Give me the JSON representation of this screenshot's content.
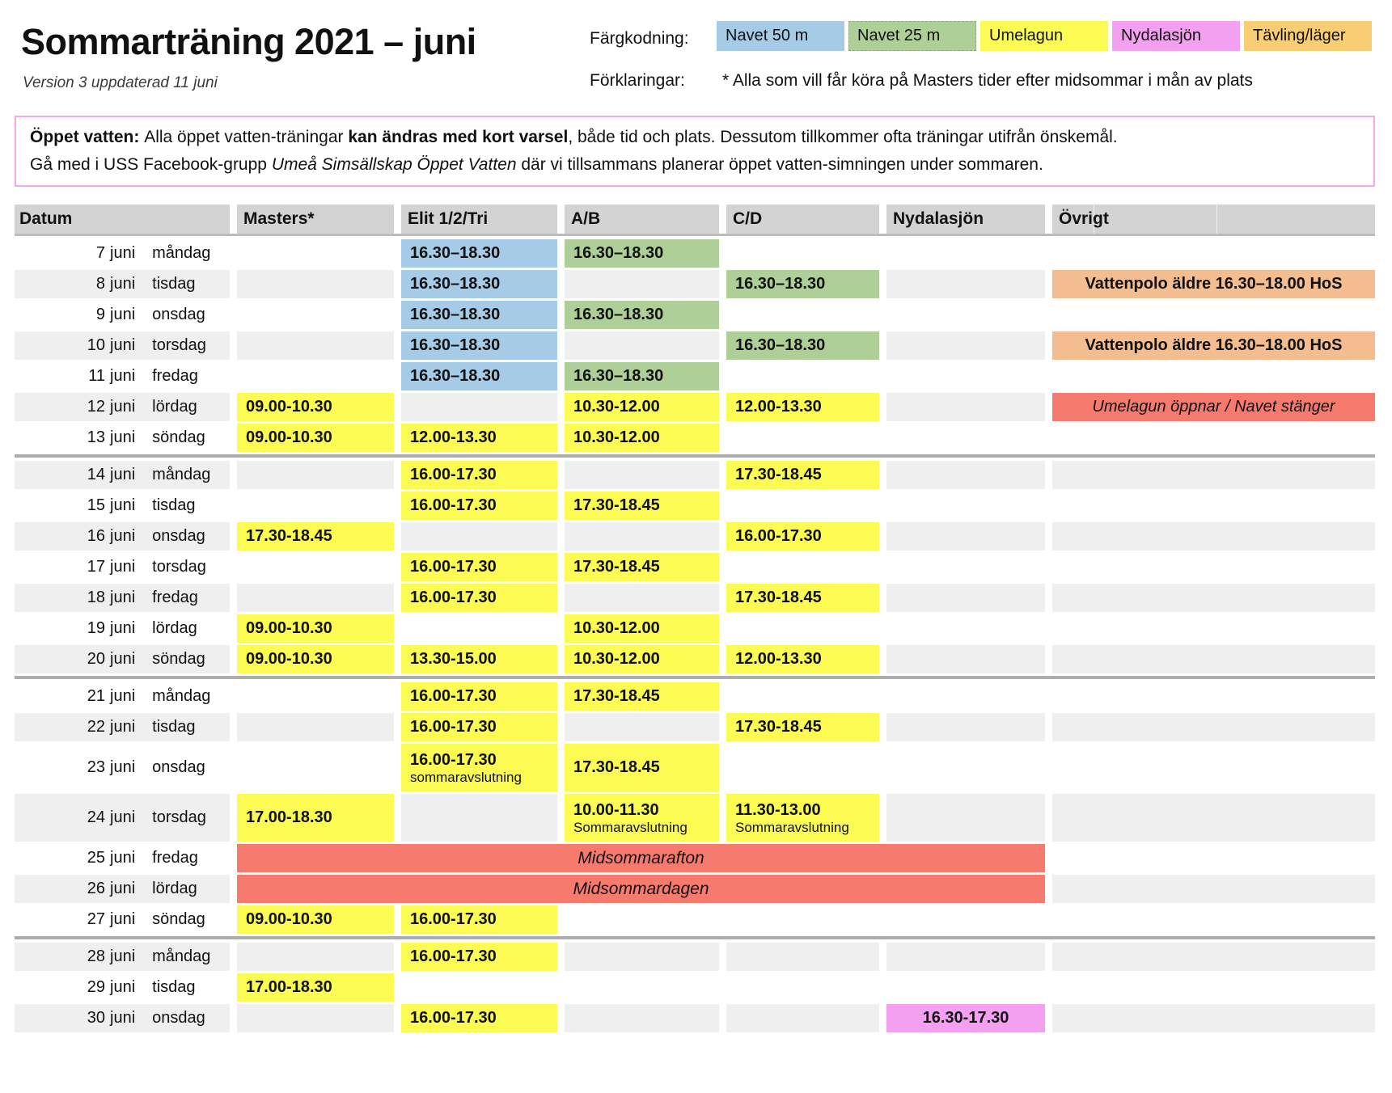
{
  "title": "Sommarträning 2021 – juni",
  "subtitle": "Version 3 uppdaterad 11 juni",
  "legend": {
    "label": "Färgkodning:",
    "items": [
      {
        "label": "Navet 50 m",
        "color": "#a6cbe7",
        "dashed": false
      },
      {
        "label": "Navet 25 m",
        "color": "#aed098",
        "dashed": true
      },
      {
        "label": "Umelagun",
        "color": "#fbfb54",
        "dashed": false
      },
      {
        "label": "Nydalasjön",
        "color": "#f3a0f0",
        "dashed": false
      },
      {
        "label": "Tävling/läger",
        "color": "#f8cd74",
        "dashed": false
      }
    ]
  },
  "explanations": {
    "label": "Förklaringar:",
    "text": "* Alla som vill får köra på Masters tider efter midsommar i mån av plats"
  },
  "notice": {
    "line1": [
      {
        "text": "Öppet vatten: ",
        "bold": true
      },
      {
        "text": "Alla öppet vatten-träningar "
      },
      {
        "text": "kan ändras med kort varsel",
        "bold": true
      },
      {
        "text": ", både tid och plats. Dessutom tillkommer ofta träningar utifrån önskemål."
      }
    ],
    "line2": [
      {
        "text": "Gå med i USS Facebook-grupp "
      },
      {
        "text": "Umeå Simsällskap Öppet Vatten",
        "italic": true
      },
      {
        "text": " där vi tillsammans planerar öppet vatten-simningen under sommaren."
      }
    ]
  },
  "colors": {
    "blue": "#a6cbe7",
    "green": "#aed098",
    "yellow": "#fbfb54",
    "pink": "#f3a0f0",
    "orange": "#f3bd90",
    "red": "#f67a6e",
    "header_gray": "#d3d3d3",
    "stripe": "#efefef",
    "separator": "#adadad"
  },
  "table": {
    "columns": [
      "Datum",
      "Masters*",
      "Elit 1/2/Tri",
      "A/B",
      "C/D",
      "Nydalasjön",
      "Övrigt"
    ],
    "month_word": "juni",
    "rows": [
      {
        "day": "7",
        "weekday": "måndag",
        "striped": false,
        "cells": {
          "elit": {
            "text": "16.30–18.30",
            "color": "blue"
          },
          "ab": {
            "text": "16.30–18.30",
            "color": "green"
          }
        }
      },
      {
        "day": "8",
        "weekday": "tisdag",
        "striped": true,
        "cells": {
          "elit": {
            "text": "16.30–18.30",
            "color": "blue"
          },
          "cd": {
            "text": "16.30–18.30",
            "color": "green"
          },
          "ovrigt": {
            "text": "Vattenpolo äldre 16.30–18.00 HoS",
            "color": "orange",
            "align": "center",
            "seam": true
          }
        }
      },
      {
        "day": "9",
        "weekday": "onsdag",
        "striped": false,
        "cells": {
          "elit": {
            "text": "16.30–18.30",
            "color": "blue"
          },
          "ab": {
            "text": "16.30–18.30",
            "color": "green"
          }
        }
      },
      {
        "day": "10",
        "weekday": "torsdag",
        "striped": true,
        "cells": {
          "elit": {
            "text": "16.30–18.30",
            "color": "blue"
          },
          "cd": {
            "text": "16.30–18.30",
            "color": "green"
          },
          "ovrigt": {
            "text": "Vattenpolo äldre 16.30–18.00 HoS",
            "color": "orange",
            "align": "center",
            "seam": true
          }
        }
      },
      {
        "day": "11",
        "weekday": "fredag",
        "striped": false,
        "cells": {
          "elit": {
            "text": "16.30–18.30",
            "color": "blue"
          },
          "ab": {
            "text": "16.30–18.30",
            "color": "green"
          }
        }
      },
      {
        "day": "12",
        "weekday": "lördag",
        "striped": true,
        "cells": {
          "masters": {
            "text": "09.00-10.30",
            "color": "yellow"
          },
          "ab": {
            "text": "10.30-12.00",
            "color": "yellow"
          },
          "cd": {
            "text": "12.00-13.30",
            "color": "yellow"
          },
          "ovrigt": {
            "text": "Umelagun öppnar / Navet stänger",
            "color": "red",
            "align": "center",
            "italic": true
          }
        }
      },
      {
        "day": "13",
        "weekday": "söndag",
        "striped": false,
        "separator": true,
        "cells": {
          "masters": {
            "text": "09.00-10.30",
            "color": "yellow"
          },
          "elit": {
            "text": "12.00-13.30",
            "color": "yellow"
          },
          "ab": {
            "text": "10.30-12.00",
            "color": "yellow"
          }
        }
      },
      {
        "day": "14",
        "weekday": "måndag",
        "striped": true,
        "cells": {
          "elit": {
            "text": "16.00-17.30",
            "color": "yellow"
          },
          "cd": {
            "text": "17.30-18.45",
            "color": "yellow"
          }
        }
      },
      {
        "day": "15",
        "weekday": "tisdag",
        "striped": false,
        "cells": {
          "elit": {
            "text": "16.00-17.30",
            "color": "yellow"
          },
          "ab": {
            "text": "17.30-18.45",
            "color": "yellow"
          }
        }
      },
      {
        "day": "16",
        "weekday": "onsdag",
        "striped": true,
        "cells": {
          "masters": {
            "text": "17.30-18.45",
            "color": "yellow"
          },
          "cd": {
            "text": "16.00-17.30",
            "color": "yellow"
          }
        }
      },
      {
        "day": "17",
        "weekday": "torsdag",
        "striped": false,
        "cells": {
          "elit": {
            "text": "16.00-17.30",
            "color": "yellow"
          },
          "ab": {
            "text": "17.30-18.45",
            "color": "yellow"
          }
        }
      },
      {
        "day": "18",
        "weekday": "fredag",
        "striped": true,
        "cells": {
          "elit": {
            "text": "16.00-17.30",
            "color": "yellow"
          },
          "cd": {
            "text": "17.30-18.45",
            "color": "yellow"
          }
        }
      },
      {
        "day": "19",
        "weekday": "lördag",
        "striped": false,
        "cells": {
          "masters": {
            "text": "09.00-10.30",
            "color": "yellow"
          },
          "ab": {
            "text": "10.30-12.00",
            "color": "yellow"
          }
        }
      },
      {
        "day": "20",
        "weekday": "söndag",
        "striped": true,
        "separator": true,
        "cells": {
          "masters": {
            "text": "09.00-10.30",
            "color": "yellow"
          },
          "elit": {
            "text": "13.30-15.00",
            "color": "yellow"
          },
          "ab": {
            "text": "10.30-12.00",
            "color": "yellow"
          },
          "cd": {
            "text": "12.00-13.30",
            "color": "yellow"
          }
        }
      },
      {
        "day": "21",
        "weekday": "måndag",
        "striped": false,
        "cells": {
          "elit": {
            "text": "16.00-17.30",
            "color": "yellow"
          },
          "ab": {
            "text": "17.30-18.45",
            "color": "yellow"
          }
        }
      },
      {
        "day": "22",
        "weekday": "tisdag",
        "striped": true,
        "cells": {
          "elit": {
            "text": "16.00-17.30",
            "color": "yellow"
          },
          "cd": {
            "text": "17.30-18.45",
            "color": "yellow"
          }
        }
      },
      {
        "day": "23",
        "weekday": "onsdag",
        "striped": false,
        "tall": true,
        "cells": {
          "elit": {
            "text": "16.00-17.30",
            "sub": "sommaravslutning",
            "color": "yellow"
          },
          "ab": {
            "text": "17.30-18.45",
            "color": "yellow"
          }
        }
      },
      {
        "day": "24",
        "weekday": "torsdag",
        "striped": true,
        "tall": true,
        "cells": {
          "masters": {
            "text": "17.00-18.30",
            "color": "yellow"
          },
          "ab": {
            "text": "10.00-11.30",
            "sub": "Sommaravslutning",
            "color": "yellow"
          },
          "cd": {
            "text": "11.30-13.00",
            "sub": "Sommaravslutning",
            "color": "yellow"
          }
        }
      },
      {
        "day": "25",
        "weekday": "fredag",
        "striped": false,
        "banner": {
          "text": "Midsommarafton",
          "color": "red"
        }
      },
      {
        "day": "26",
        "weekday": "lördag",
        "striped": true,
        "banner": {
          "text": "Midsommardagen",
          "color": "red"
        }
      },
      {
        "day": "27",
        "weekday": "söndag",
        "striped": false,
        "separator": true,
        "cells": {
          "masters": {
            "text": "09.00-10.30",
            "color": "yellow"
          },
          "elit": {
            "text": "16.00-17.30",
            "color": "yellow"
          }
        }
      },
      {
        "day": "28",
        "weekday": "måndag",
        "striped": true,
        "cells": {
          "elit": {
            "text": "16.00-17.30",
            "color": "yellow"
          }
        }
      },
      {
        "day": "29",
        "weekday": "tisdag",
        "striped": false,
        "cells": {
          "masters": {
            "text": "17.00-18.30",
            "color": "yellow"
          }
        }
      },
      {
        "day": "30",
        "weekday": "onsdag",
        "striped": true,
        "cells": {
          "elit": {
            "text": "16.00-17.30",
            "color": "yellow"
          },
          "nydala": {
            "text": "16.30-17.30",
            "color": "pink",
            "align": "center"
          }
        }
      }
    ]
  }
}
